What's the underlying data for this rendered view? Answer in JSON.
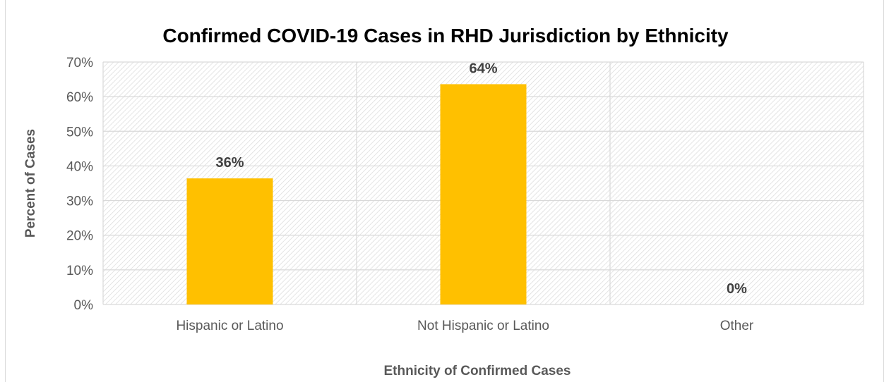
{
  "chart_data": {
    "type": "bar",
    "title": "Confirmed COVID-19 Cases in RHD Jurisdiction by Ethnicity",
    "xlabel": "Ethnicity of Confirmed Cases",
    "ylabel": "Percent of Cases",
    "categories": [
      "Hispanic or Latino",
      "Not Hispanic or Latino",
      "Other"
    ],
    "values": [
      36.4,
      63.6,
      0
    ],
    "data_labels": [
      "36%",
      "64%",
      "0%"
    ],
    "ylim": [
      0,
      70
    ],
    "yticks": [
      0,
      10,
      20,
      30,
      40,
      50,
      60,
      70
    ],
    "ytick_labels": [
      "0%",
      "10%",
      "20%",
      "30%",
      "40%",
      "50%",
      "60%",
      "70%"
    ],
    "grid": true,
    "legend": "none",
    "colors": {
      "bar": "#FFC000",
      "grid": "#d9d9d9",
      "hatch": "#d9d9d9"
    }
  }
}
